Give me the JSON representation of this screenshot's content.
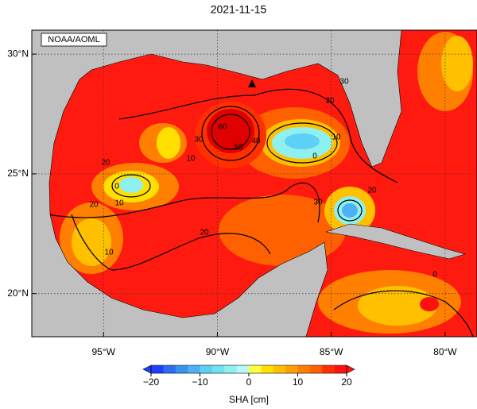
{
  "title": "2021-11-15",
  "credit": "NOAA/AOML",
  "map": {
    "lon_range": [
      -98.15,
      -78.6
    ],
    "lat_range": [
      18.2,
      31.0
    ],
    "lon_ticks": [
      {
        "value": -95,
        "label": "95°W"
      },
      {
        "value": -90,
        "label": "90°W"
      },
      {
        "value": -85,
        "label": "85°W"
      },
      {
        "value": -80,
        "label": "80°W"
      }
    ],
    "lat_ticks": [
      {
        "value": 30,
        "label": "30°N"
      },
      {
        "value": 25,
        "label": "25°N"
      },
      {
        "value": 20,
        "label": "20°N"
      }
    ]
  },
  "contour_labels": [
    30,
    20,
    60,
    50,
    40,
    0,
    10,
    20,
    10,
    30,
    0,
    10,
    20,
    10,
    20,
    30,
    20,
    0
  ],
  "colorbar": {
    "label": "SHA [cm]",
    "lim": [
      -20,
      20
    ],
    "ticks": [
      {
        "value": -20,
        "label": "−20"
      },
      {
        "value": -10,
        "label": "−10"
      },
      0,
      10,
      20
    ],
    "colors": [
      "#1f3fff",
      "#2b6cf0",
      "#3c91f0",
      "#4fb0f5",
      "#5ecff5",
      "#6fe3f0",
      "#8ff0f0",
      "#b8f8f8",
      "#ffff40",
      "#ffe000",
      "#ffc000",
      "#ffa000",
      "#ff8000",
      "#ff6000",
      "#ff3000",
      "#ff1010"
    ]
  }
}
